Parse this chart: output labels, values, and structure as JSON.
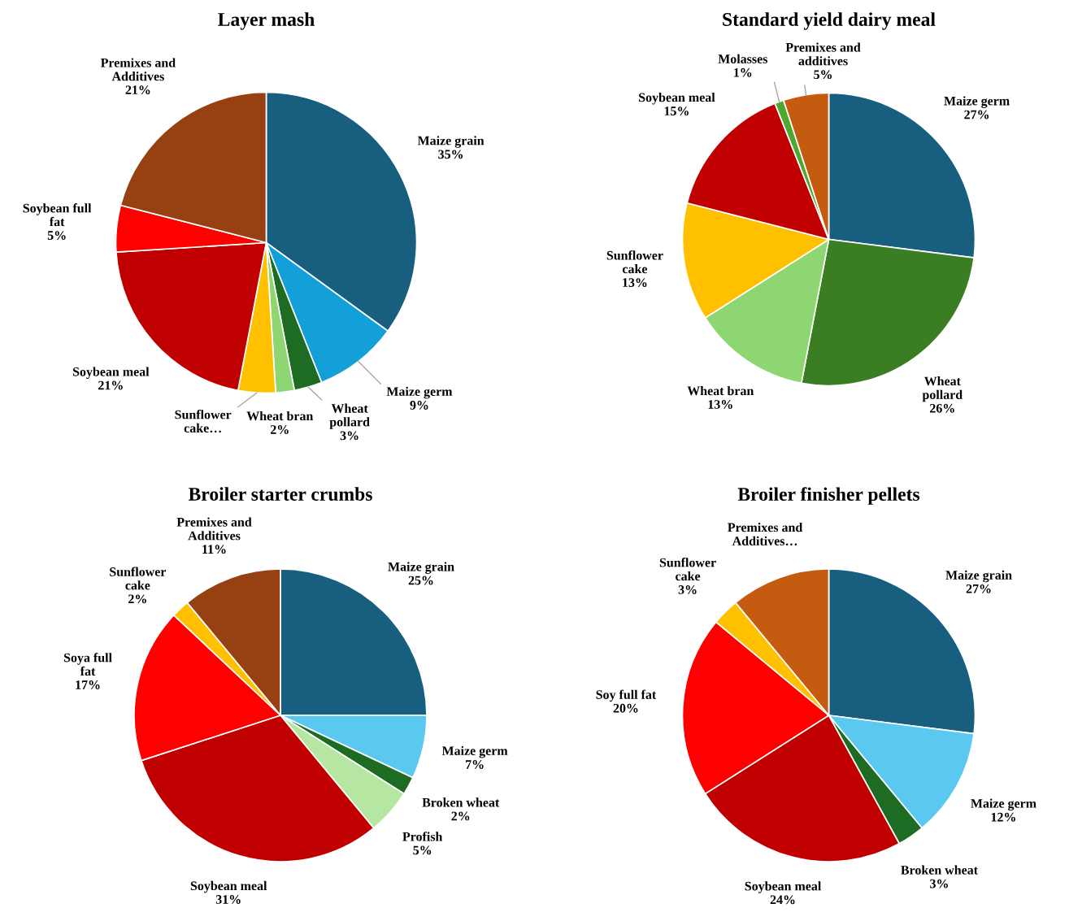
{
  "chart_data": [
    {
      "type": "pie",
      "title": "Layer mash",
      "categories": [
        "Maize grain",
        "Maize germ",
        "Wheat pollard",
        "Wheat bran",
        "Sunflower cake…",
        "Soybean meal",
        "Soybean full fat",
        "Premixes and Additives"
      ],
      "values": [
        35,
        9,
        3,
        2,
        4,
        21,
        5,
        21
      ],
      "colors": [
        "#175e7f",
        "#139fd8",
        "#1e6b24",
        "#8dd672",
        "#ffc000",
        "#c00000",
        "#ff0000",
        "#974011"
      ],
      "value_labels": [
        "35%",
        "9%",
        "3%",
        "2%",
        null,
        "21%",
        "5%",
        "21%"
      ]
    },
    {
      "type": "pie",
      "title": "Standard yield dairy meal",
      "categories": [
        "Maize germ",
        "Wheat pollard",
        "Wheat bran",
        "Sunflower cake",
        "Soybean meal",
        "Molasses",
        "Premixes and additives"
      ],
      "values": [
        27,
        26,
        13,
        13,
        15,
        1,
        5
      ],
      "colors": [
        "#175e7f",
        "#3a7d22",
        "#8dd672",
        "#ffc000",
        "#c00000",
        "#4ea72e",
        "#c55a11"
      ],
      "value_labels": [
        "27%",
        "26%",
        "13%",
        "13%",
        "15%",
        "1%",
        "5%"
      ]
    },
    {
      "type": "pie",
      "title": "Broiler starter crumbs",
      "categories": [
        "Maize grain",
        "Maize germ",
        "Broken wheat",
        "Profish",
        "Soybean meal",
        "Soya full fat",
        "Sunflower cake",
        "Premixes and Additives"
      ],
      "values": [
        25,
        7,
        2,
        5,
        31,
        17,
        2,
        11
      ],
      "colors": [
        "#175e7f",
        "#5bc8f0",
        "#1e6b24",
        "#b5e6a2",
        "#c00000",
        "#ff0000",
        "#ffc000",
        "#974011"
      ],
      "value_labels": [
        "25%",
        "7%",
        "2%",
        "5%",
        "31%",
        "17%",
        "2%",
        "11%"
      ]
    },
    {
      "type": "pie",
      "title": "Broiler finisher pellets",
      "categories": [
        "Maize grain",
        "Maize germ",
        "Broken wheat",
        "Soybean meal",
        "Soy full fat",
        "Sunflower cake",
        "Premixes and Additives…"
      ],
      "values": [
        27,
        12,
        3,
        24,
        20,
        3,
        11
      ],
      "colors": [
        "#175e7f",
        "#5bc8f0",
        "#1e6b24",
        "#c00000",
        "#ff0000",
        "#ffc000",
        "#c55a11"
      ],
      "value_labels": [
        "27%",
        "12%",
        "3%",
        "24%",
        "20%",
        "3%",
        null
      ]
    }
  ]
}
